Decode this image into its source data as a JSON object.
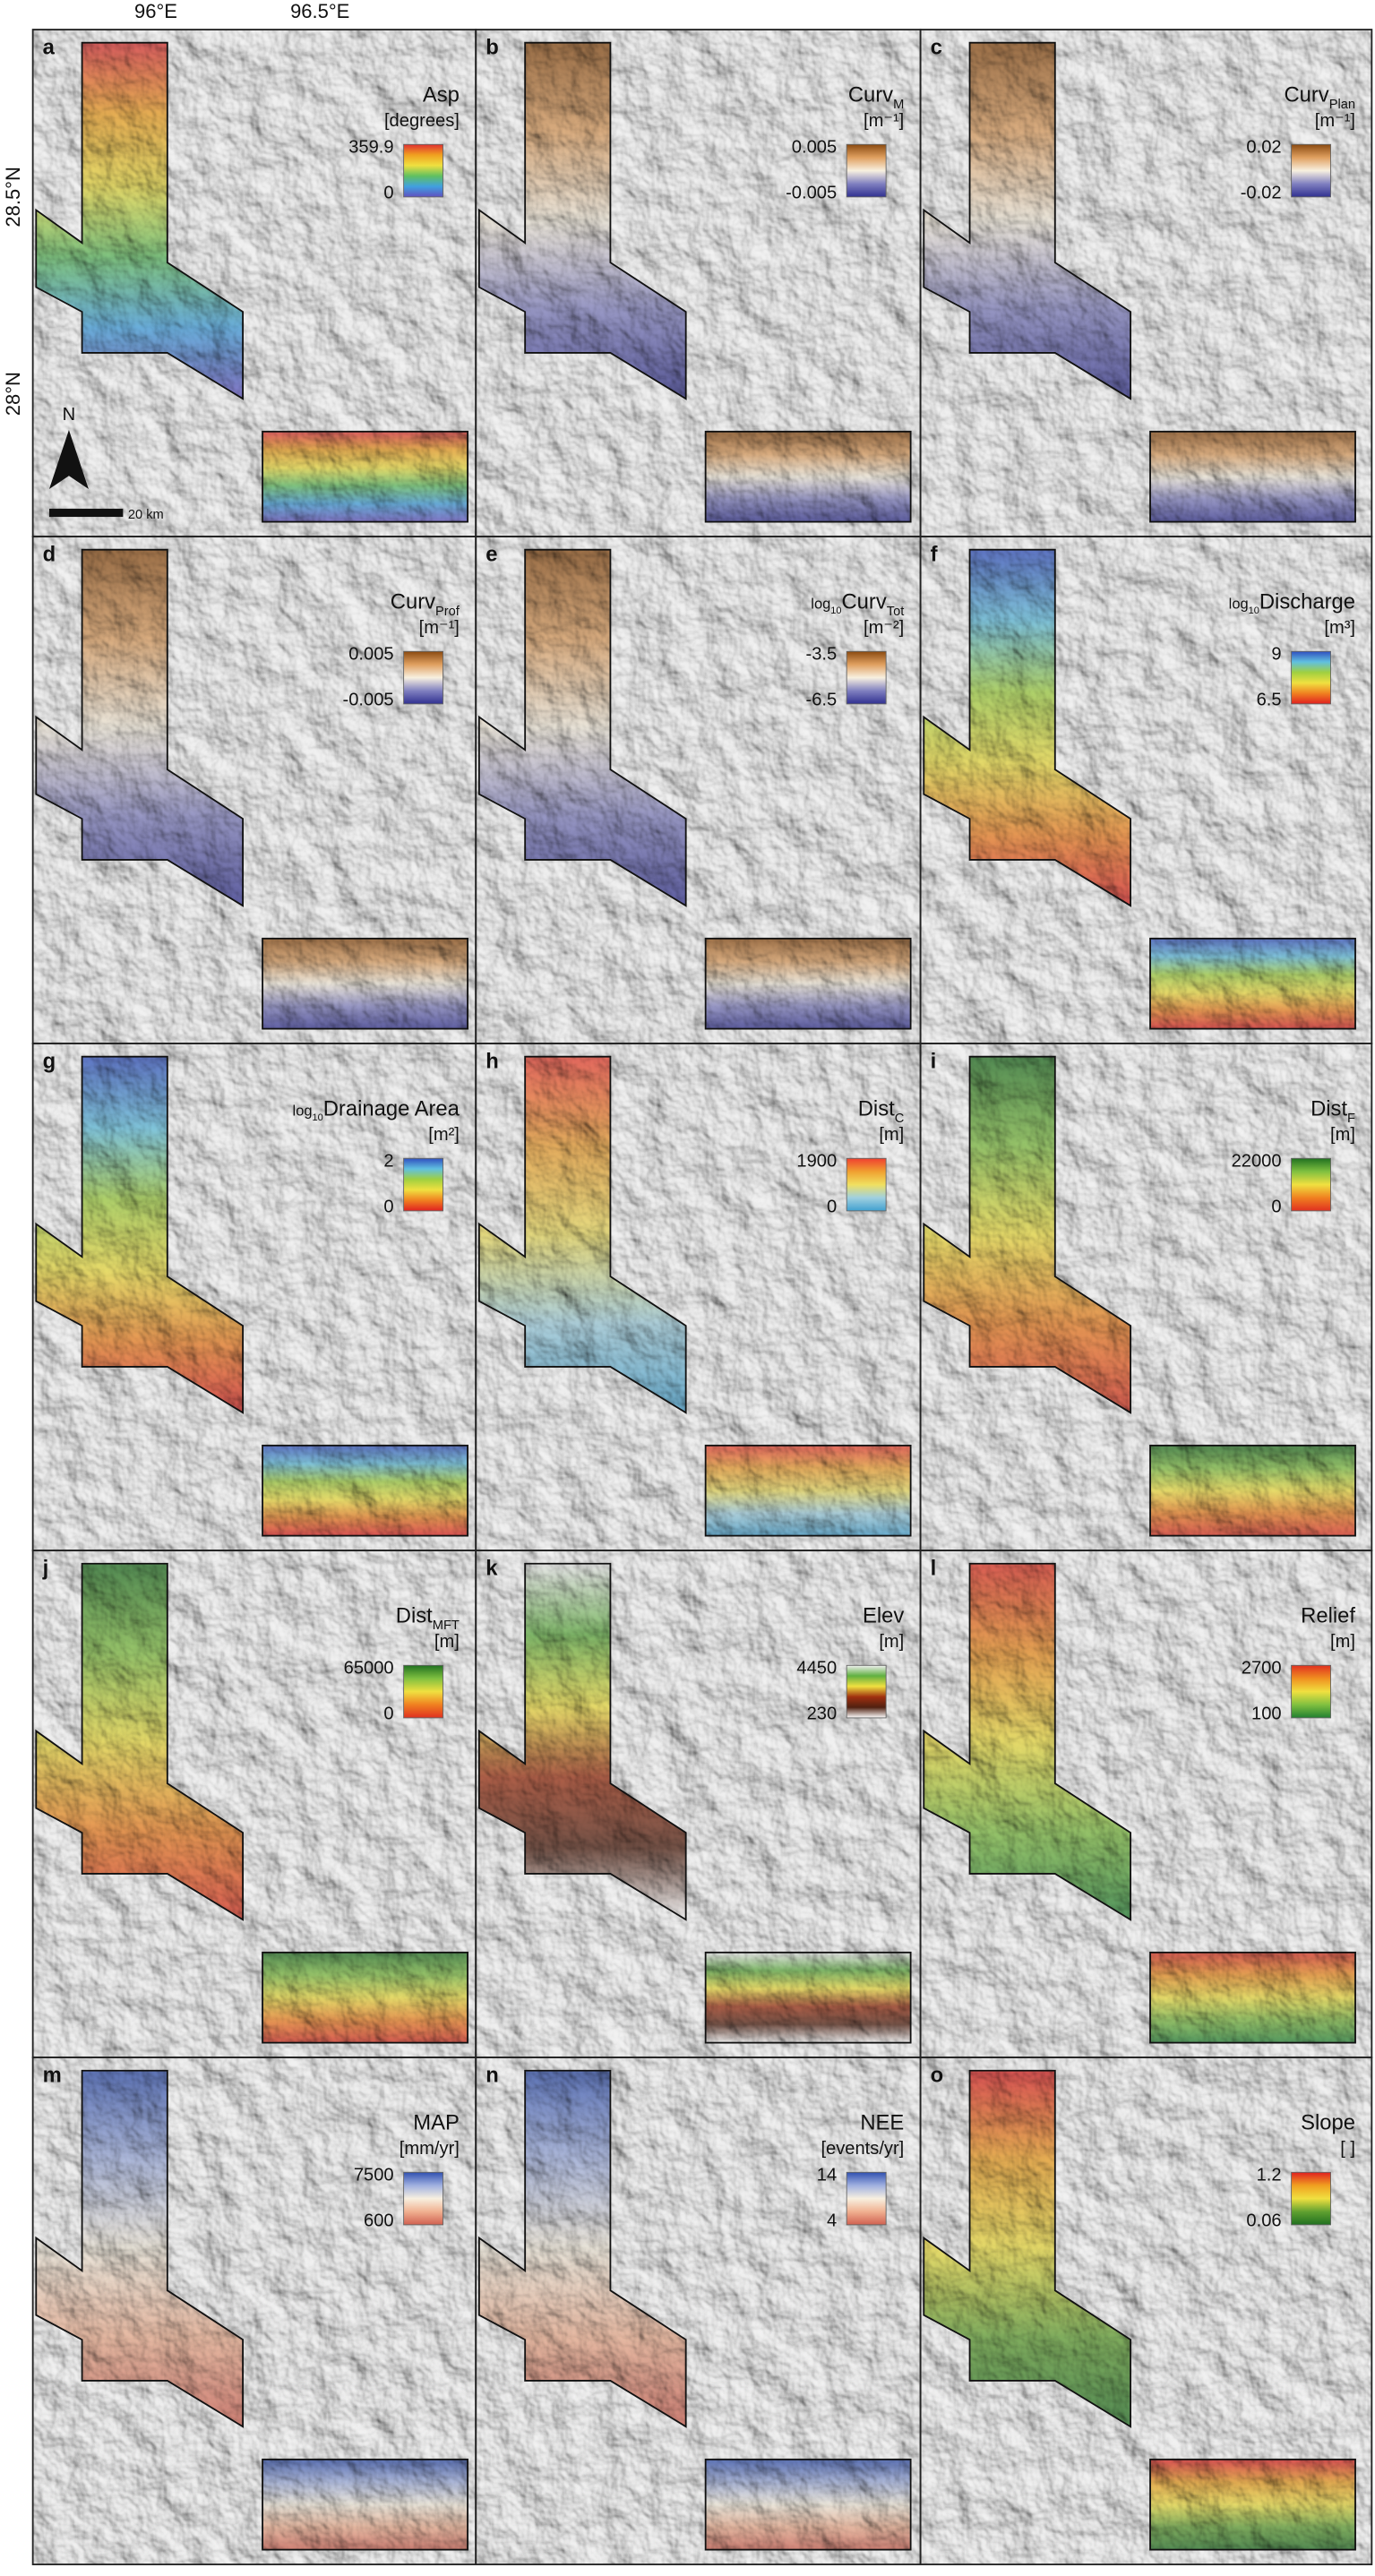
{
  "axes": {
    "top": [
      "96°E",
      "96.5°E"
    ],
    "left": [
      "28.5°N",
      "28°N"
    ]
  },
  "north": "N",
  "scale_bar": "20 km",
  "panels": [
    {
      "letter": "a",
      "title": "Asp",
      "unit": "[degrees]",
      "max": 359.9,
      "min": 0,
      "colors": [
        "#e03030",
        "#f0a020",
        "#f0e040",
        "#60c060",
        "#40a0e0",
        "#6050c0"
      ]
    },
    {
      "letter": "b",
      "title": "Curv",
      "sub": "M",
      "unit": "[m⁻¹]",
      "max": 0.005,
      "min": -0.005,
      "colors": [
        "#8a4a10",
        "#e0a060",
        "#f8f0e0",
        "#8080c0",
        "#303090"
      ]
    },
    {
      "letter": "c",
      "title": "Curv",
      "sub": "Plan",
      "unit": "[m⁻¹]",
      "max": 0.02,
      "min": -0.02,
      "colors": [
        "#8a4a10",
        "#e0a060",
        "#f8f0e0",
        "#8080c0",
        "#303090"
      ]
    },
    {
      "letter": "d",
      "title": "Curv",
      "sub": "Prof",
      "unit": "[m⁻¹]",
      "max": 0.005,
      "min": -0.005,
      "colors": [
        "#8a4a10",
        "#e0a060",
        "#f8f0e0",
        "#8080c0",
        "#303090"
      ]
    },
    {
      "letter": "e",
      "prefix": "log",
      "prefix_sub": "10",
      "title": "Curv",
      "sub": "Tot",
      "unit": "[m⁻²]",
      "max": -3.5,
      "min": -6.5,
      "colors": [
        "#8a4a10",
        "#e0a060",
        "#f8f0e0",
        "#8080c0",
        "#303090"
      ]
    },
    {
      "letter": "f",
      "prefix": "log",
      "prefix_sub": "10",
      "title": "Discharge",
      "unit": "[m³]",
      "max": 9,
      "min": 6.5,
      "colors": [
        "#3050c0",
        "#60c0e0",
        "#a0d040",
        "#f0e040",
        "#f08020",
        "#e02020"
      ]
    },
    {
      "letter": "g",
      "prefix": "log",
      "prefix_sub": "10",
      "title": "Drainage Area",
      "unit": "[m²]",
      "max": 2,
      "min": 0,
      "colors": [
        "#3050c0",
        "#60c0e0",
        "#a0d040",
        "#f0e040",
        "#f08020",
        "#e02020"
      ]
    },
    {
      "letter": "h",
      "title": "Dist",
      "sub": "C",
      "unit": "[m]",
      "max": 1900,
      "min": 0,
      "colors": [
        "#f04030",
        "#f0a030",
        "#f0e060",
        "#a0d0e0",
        "#40a0d0"
      ]
    },
    {
      "letter": "i",
      "title": "Dist",
      "sub": "F",
      "unit": "[m]",
      "max": 22000,
      "min": 0,
      "colors": [
        "#207020",
        "#80c040",
        "#f0e040",
        "#f08020",
        "#e03020"
      ]
    },
    {
      "letter": "j",
      "title": "Dist",
      "sub": "MFT",
      "unit": "[m]",
      "max": 65000,
      "min": 0,
      "colors": [
        "#207020",
        "#80c040",
        "#f0e040",
        "#f08020",
        "#e03020"
      ]
    },
    {
      "letter": "k",
      "title": "Elev",
      "unit": "[m]",
      "max": 4450,
      "min": 230,
      "colors": [
        "#f0f0f0",
        "#60b040",
        "#f0e040",
        "#a03010",
        "#502010",
        "#ffffff"
      ]
    },
    {
      "letter": "l",
      "title": "Relief",
      "unit": "[m]",
      "max": 2700,
      "min": 100,
      "colors": [
        "#e03020",
        "#f09020",
        "#f0e040",
        "#80c040",
        "#208030"
      ]
    },
    {
      "letter": "m",
      "title": "MAP",
      "unit": "[mm/yr]",
      "max": 7500,
      "min": 600,
      "colors": [
        "#3050b0",
        "#a0b0e0",
        "#f8f0e0",
        "#f0b090",
        "#d06050"
      ]
    },
    {
      "letter": "n",
      "title": "NEE",
      "unit": "[events/yr]",
      "max": 14,
      "min": 4,
      "colors": [
        "#3050b0",
        "#a0b0e0",
        "#f8f0e0",
        "#f0b090",
        "#d06050"
      ]
    },
    {
      "letter": "o",
      "title": "Slope",
      "unit": "[ ]",
      "max": 1.2,
      "min": 0.06,
      "colors": [
        "#e02020",
        "#f0a020",
        "#f0e040",
        "#60a030",
        "#207020"
      ]
    }
  ]
}
